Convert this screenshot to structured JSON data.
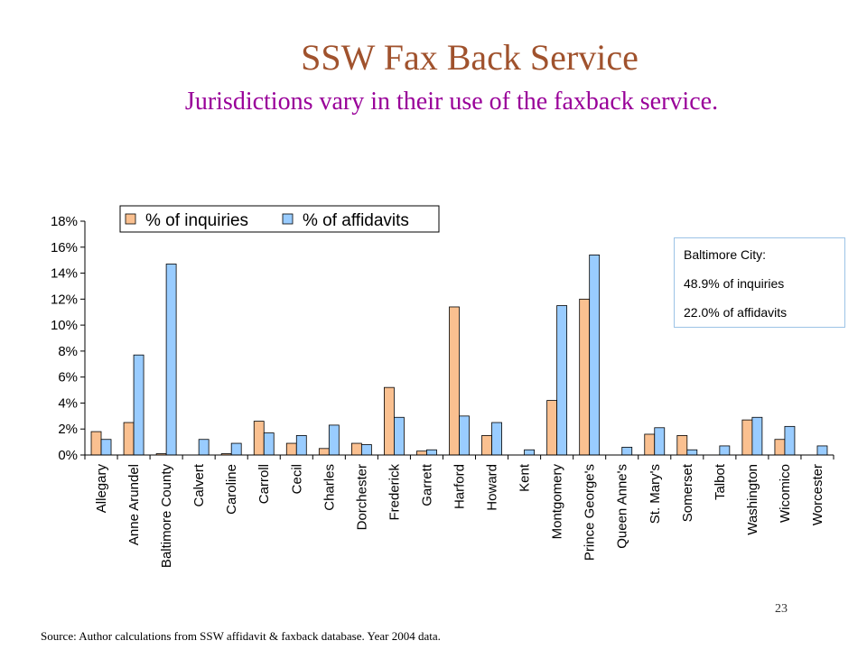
{
  "slide": {
    "title": "SSW Fax Back Service",
    "subtitle": "Jurisdictions vary in their use of the faxback service.",
    "page_number": "23",
    "source": "Source: Author calculations from SSW affidavit & faxback database. Year 2004 data."
  },
  "note": {
    "lines": [
      "Baltimore City:",
      "48.9% of inquiries",
      "22.0% of affidavits"
    ]
  },
  "colors": {
    "inquiries": "#fac090",
    "affidavits": "#99ccff",
    "title": "#a0522d",
    "subtitle": "#990099",
    "note_border": "#9cc3e6"
  },
  "chart_data": {
    "type": "bar",
    "categories": [
      "Allegary",
      "Anne Arundel",
      "Baltimore County",
      "Calvert",
      "Caroline",
      "Carroll",
      "Cecil",
      "Charles",
      "Dorchester",
      "Frederick",
      "Garrett",
      "Harford",
      "Howard",
      "Kent",
      "Montgomery",
      "Prince George's",
      "Queen Anne's",
      "St. Mary's",
      "Somerset",
      "Talbot",
      "Washington",
      "Wicomico",
      "Worcester"
    ],
    "series": [
      {
        "name": "% of inquiries",
        "values": [
          1.8,
          2.5,
          0.1,
          0.0,
          0.1,
          2.6,
          0.9,
          0.5,
          0.9,
          5.2,
          0.3,
          11.4,
          1.5,
          0.0,
          4.2,
          12.0,
          0.0,
          1.6,
          1.5,
          0.0,
          2.7,
          1.2,
          0.0
        ]
      },
      {
        "name": "% of affidavits",
        "values": [
          1.2,
          7.7,
          14.7,
          1.2,
          0.9,
          1.7,
          1.5,
          2.3,
          0.8,
          2.9,
          0.4,
          3.0,
          2.5,
          0.4,
          11.5,
          15.4,
          0.6,
          2.1,
          0.4,
          0.7,
          2.9,
          2.2,
          0.7
        ]
      }
    ],
    "ylim": [
      0,
      18
    ],
    "yticks": [
      "0%",
      "2%",
      "4%",
      "6%",
      "8%",
      "10%",
      "12%",
      "14%",
      "16%",
      "18%"
    ],
    "legend_position": "top-left",
    "grid": false
  }
}
